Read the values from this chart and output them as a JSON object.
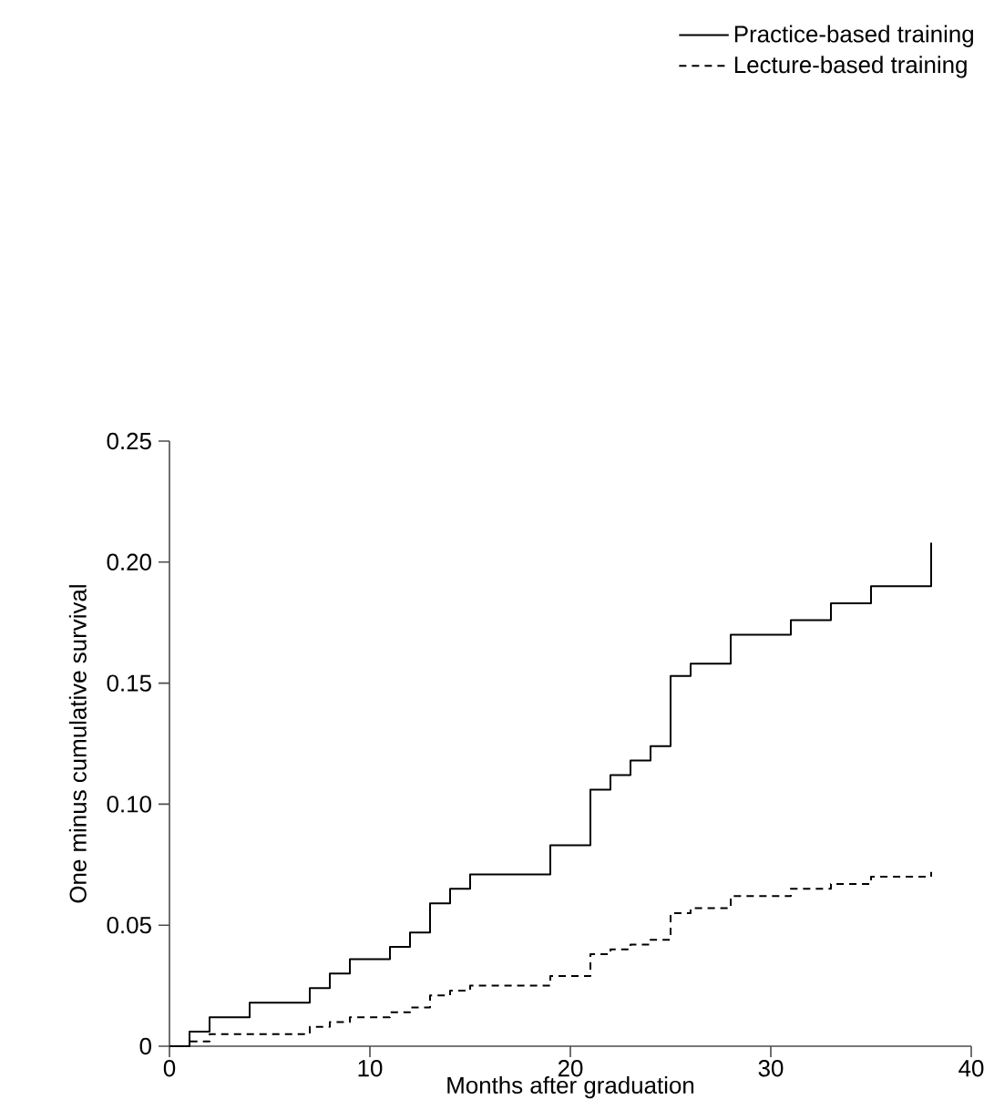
{
  "chart_data": {
    "type": "step",
    "xlabel": "Months after graduation",
    "ylabel": "One minus cumulative survival",
    "xlim": [
      0,
      40
    ],
    "xticks": [
      0,
      10,
      20,
      30,
      40
    ],
    "ylim": [
      0,
      0.25
    ],
    "yticks": [
      0,
      0.05,
      {
        "value": 0.1,
        "label": "0.10"
      },
      0.15,
      {
        "value": 0.2,
        "label": "0.20"
      },
      0.25
    ],
    "legend": "top right",
    "grid": false,
    "series": [
      {
        "name": "Practice-based training",
        "color": "#000000",
        "line_style": "solid",
        "x": [
          0,
          1,
          2,
          4,
          7,
          8,
          9,
          11,
          12,
          13,
          14,
          15,
          19,
          21,
          22,
          23,
          24,
          25,
          26,
          28,
          31,
          33,
          35,
          38
        ],
        "values": [
          0,
          0.006,
          0.012,
          0.018,
          0.024,
          0.03,
          0.036,
          0.041,
          0.047,
          0.059,
          0.065,
          0.071,
          0.083,
          0.106,
          0.112,
          0.118,
          0.124,
          0.153,
          0.158,
          0.17,
          0.176,
          0.183,
          0.19,
          0.208
        ]
      },
      {
        "name": "Lecture-based training",
        "color": "#000000",
        "line_style": "dashed",
        "x": [
          0,
          1,
          2,
          7,
          8,
          9,
          11,
          12,
          13,
          14,
          15,
          19,
          21,
          22,
          23,
          24,
          25,
          26,
          28,
          31,
          33,
          35,
          38
        ],
        "values": [
          0,
          0.002,
          0.005,
          0.008,
          0.01,
          0.012,
          0.014,
          0.016,
          0.021,
          0.023,
          0.025,
          0.029,
          0.038,
          0.04,
          0.042,
          0.044,
          0.055,
          0.057,
          0.062,
          0.065,
          0.067,
          0.07,
          0.072
        ]
      }
    ]
  }
}
